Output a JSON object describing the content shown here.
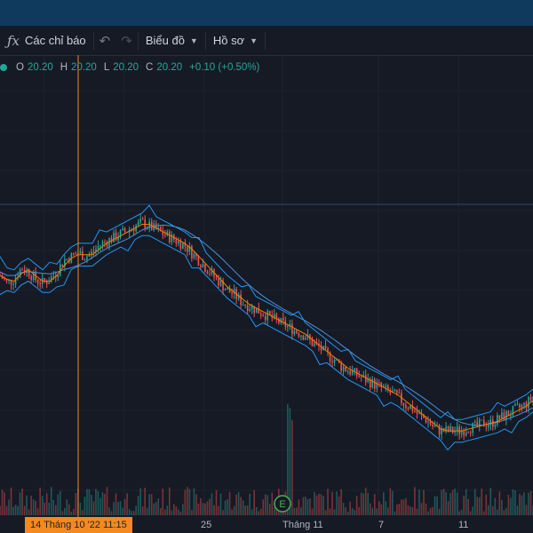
{
  "toolbar": {
    "indicators_label": "Các chỉ báo",
    "chart_label": "Biểu đồ",
    "profile_label": "Hồ sơ"
  },
  "legend": {
    "o_label": "O",
    "o_value": "20.20",
    "h_label": "H",
    "h_value": "20.20",
    "l_label": "L",
    "l_value": "20.20",
    "c_label": "C",
    "c_value": "20.20",
    "change": "+0.10 (+0.50%)"
  },
  "colors": {
    "up": "#26a69a",
    "down": "#ef5350",
    "bollinger": "#2196f3",
    "ma_orange": "#f57c00",
    "crosshair": "#f5891d"
  },
  "x_axis": {
    "ticks": [
      "25",
      "Tháng 11",
      "7",
      "11"
    ],
    "crosshair_label": "14 Tháng 10 '22   11:15"
  },
  "marker_icon_label": "E",
  "chart_data": {
    "type": "line",
    "series": [
      {
        "values": [
          62,
          60,
          61,
          64,
          63,
          61,
          60,
          61,
          63,
          66,
          67,
          68,
          67,
          68,
          70,
          71,
          72,
          73,
          74,
          75,
          76,
          75,
          74,
          73,
          72,
          71,
          70,
          68,
          66,
          64,
          62,
          60,
          58,
          57,
          55,
          54,
          53,
          52,
          51,
          50,
          49,
          48,
          47,
          46,
          44,
          43,
          41,
          40,
          38,
          37,
          36,
          35,
          34,
          33,
          32,
          31,
          30,
          28,
          27,
          25,
          24,
          22,
          21,
          21,
          21,
          21,
          22,
          22,
          23,
          23,
          24,
          25,
          26,
          27,
          28,
          30
        ]
      }
    ]
  }
}
